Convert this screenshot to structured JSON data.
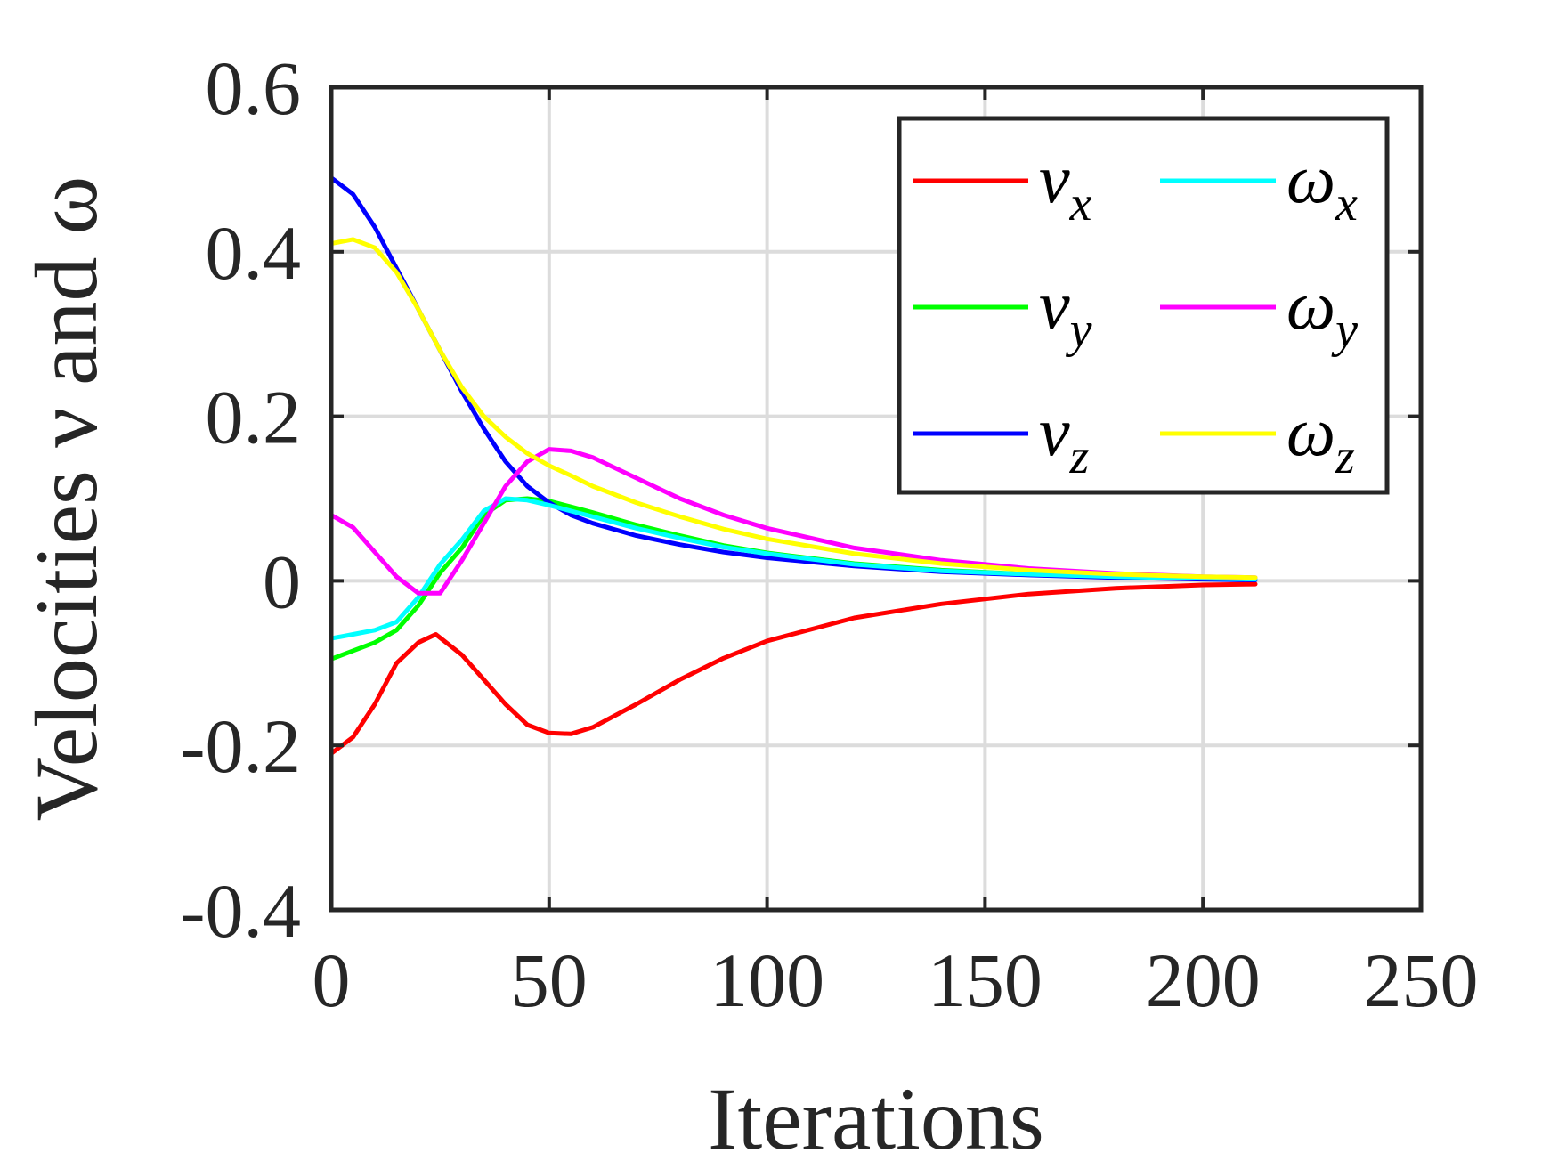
{
  "chart_data": {
    "type": "line",
    "title": "",
    "xlabel": "Iterations",
    "ylabel": "Velocities ν and ω",
    "xlim": [
      0,
      250
    ],
    "ylim": [
      -0.4,
      0.6
    ],
    "xticks": [
      0,
      50,
      100,
      150,
      200,
      250
    ],
    "yticks": [
      -0.4,
      -0.2,
      0,
      0.2,
      0.4,
      0.6
    ],
    "xtick_labels": [
      "0",
      "50",
      "100",
      "150",
      "200",
      "250"
    ],
    "ytick_labels": [
      "-0.4",
      "-0.2",
      "0",
      "0.2",
      "0.4",
      "0.6"
    ],
    "grid": true,
    "legend_position": "top-right",
    "legend_columns": 2,
    "series": [
      {
        "name": "νx",
        "base": "ν",
        "sub": "x",
        "color": "#ff0000",
        "x": [
          0,
          5,
          10,
          15,
          20,
          24,
          30,
          35,
          40,
          45,
          50,
          55,
          60,
          70,
          80,
          90,
          100,
          120,
          140,
          160,
          180,
          200,
          212
        ],
        "y": [
          -0.21,
          -0.19,
          -0.15,
          -0.1,
          -0.075,
          -0.065,
          -0.09,
          -0.12,
          -0.15,
          -0.175,
          -0.185,
          -0.186,
          -0.178,
          -0.15,
          -0.12,
          -0.094,
          -0.073,
          -0.045,
          -0.028,
          -0.016,
          -0.009,
          -0.005,
          -0.004
        ]
      },
      {
        "name": "νy",
        "base": "ν",
        "sub": "y",
        "color": "#00ff00",
        "x": [
          0,
          5,
          10,
          15,
          20,
          25,
          30,
          35,
          40,
          45,
          50,
          55,
          60,
          70,
          80,
          90,
          100,
          120,
          140,
          160,
          180,
          200,
          212
        ],
        "y": [
          -0.095,
          -0.085,
          -0.075,
          -0.06,
          -0.03,
          0.01,
          0.04,
          0.08,
          0.098,
          0.1,
          0.097,
          0.09,
          0.083,
          0.068,
          0.055,
          0.043,
          0.034,
          0.021,
          0.013,
          0.008,
          0.005,
          0.003,
          0.002
        ]
      },
      {
        "name": "νz",
        "base": "ν",
        "sub": "z",
        "color": "#0000ff",
        "x": [
          0,
          5,
          10,
          15,
          20,
          25,
          30,
          35,
          40,
          45,
          50,
          55,
          60,
          70,
          80,
          90,
          100,
          120,
          140,
          160,
          180,
          200,
          212
        ],
        "y": [
          0.49,
          0.47,
          0.43,
          0.38,
          0.33,
          0.28,
          0.23,
          0.185,
          0.145,
          0.115,
          0.095,
          0.08,
          0.07,
          0.055,
          0.044,
          0.035,
          0.028,
          0.018,
          0.011,
          0.007,
          0.004,
          0.002,
          0.001
        ]
      },
      {
        "name": "ωx",
        "base": "ω",
        "sub": "x",
        "color": "#00ffff",
        "x": [
          0,
          5,
          10,
          15,
          20,
          25,
          30,
          35,
          40,
          45,
          50,
          55,
          60,
          70,
          80,
          90,
          100,
          120,
          140,
          160,
          180,
          200,
          212
        ],
        "y": [
          -0.07,
          -0.065,
          -0.06,
          -0.05,
          -0.02,
          0.02,
          0.05,
          0.085,
          0.1,
          0.098,
          0.092,
          0.085,
          0.078,
          0.064,
          0.052,
          0.041,
          0.033,
          0.02,
          0.012,
          0.008,
          0.005,
          0.003,
          0.002
        ]
      },
      {
        "name": "ωy",
        "base": "ω",
        "sub": "y",
        "color": "#ff00ff",
        "x": [
          0,
          5,
          10,
          15,
          20,
          25,
          30,
          35,
          40,
          45,
          50,
          55,
          60,
          70,
          80,
          90,
          100,
          120,
          140,
          160,
          180,
          200,
          212
        ],
        "y": [
          0.08,
          0.065,
          0.035,
          0.005,
          -0.015,
          -0.015,
          0.025,
          0.07,
          0.115,
          0.145,
          0.16,
          0.158,
          0.15,
          0.125,
          0.1,
          0.08,
          0.064,
          0.04,
          0.025,
          0.015,
          0.009,
          0.005,
          0.004
        ]
      },
      {
        "name": "ωz",
        "base": "ω",
        "sub": "z",
        "color": "#ffff00",
        "x": [
          0,
          5,
          10,
          15,
          20,
          25,
          30,
          35,
          40,
          45,
          50,
          55,
          60,
          70,
          80,
          90,
          100,
          120,
          140,
          160,
          180,
          200,
          212
        ],
        "y": [
          0.41,
          0.415,
          0.405,
          0.375,
          0.33,
          0.28,
          0.235,
          0.2,
          0.175,
          0.155,
          0.14,
          0.128,
          0.115,
          0.095,
          0.078,
          0.063,
          0.051,
          0.033,
          0.021,
          0.013,
          0.008,
          0.005,
          0.004
        ]
      }
    ]
  }
}
